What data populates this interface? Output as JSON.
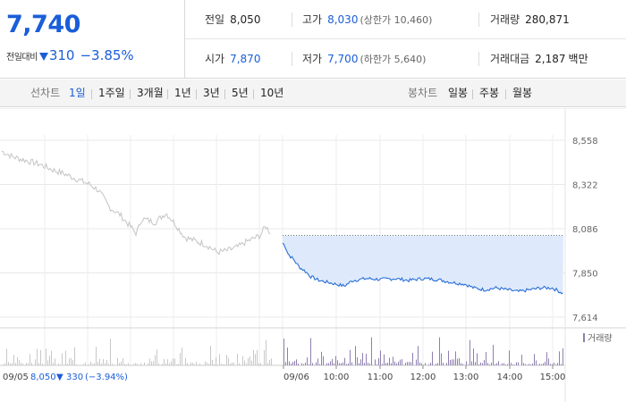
{
  "header": {
    "current_price": "7,740",
    "change_label": "전일대비",
    "change_amount": "310",
    "change_pct": "−3.85%",
    "stats": {
      "prev_close": {
        "label": "전일",
        "value": "8,050"
      },
      "high": {
        "label": "고가",
        "value": "8,030",
        "note": "(상한가 10,460)"
      },
      "volume": {
        "label": "거래량",
        "value": "280,871"
      },
      "open": {
        "label": "시가",
        "value": "7,870"
      },
      "low": {
        "label": "저가",
        "value": "7,700",
        "note": "(하한가 5,640)"
      },
      "trade_value": {
        "label": "거래대금",
        "value": "2,187",
        "unit": "백만"
      }
    }
  },
  "tabs": {
    "line_label": "선차트",
    "line_items": [
      "1일",
      "1주일",
      "3개월",
      "1년",
      "3년",
      "5년",
      "10년"
    ],
    "active": "1일",
    "candle_label": "봉차트",
    "candle_items": [
      "일봉",
      "주봉",
      "월봉"
    ]
  },
  "colors": {
    "accent_blue": "#1a5ed8",
    "today_line": "#2a6fd6",
    "today_fill": "#deeafb",
    "prev_line": "#c4c4c4",
    "volume_prev": "#c8c8c8",
    "volume_today": "#8f7fb0"
  },
  "chart_data": {
    "type": "line",
    "y_ticks": [
      "8,558",
      "8,322",
      "8,086",
      "7,850",
      "7,614"
    ],
    "ylim": [
      7614,
      8558
    ],
    "x_ticks": [
      "09/06",
      "10:00",
      "11:00",
      "12:00",
      "13:00",
      "14:00",
      "15:00"
    ],
    "volume_legend": "거래량",
    "prev_day_footer": {
      "date": "09/05",
      "close": "8,050",
      "change": "330",
      "change_pct": "(−3.94%)"
    },
    "prev_day_series": [
      [
        0,
        8500
      ],
      [
        0.04,
        8470
      ],
      [
        0.09,
        8450
      ],
      [
        0.14,
        8430
      ],
      [
        0.19,
        8400
      ],
      [
        0.23,
        8380
      ],
      [
        0.28,
        8350
      ],
      [
        0.33,
        8320
      ],
      [
        0.36,
        8290
      ],
      [
        0.4,
        8200
      ],
      [
        0.44,
        8160
      ],
      [
        0.5,
        8060
      ],
      [
        0.52,
        8140
      ],
      [
        0.57,
        8120
      ],
      [
        0.61,
        8170
      ],
      [
        0.64,
        8120
      ],
      [
        0.68,
        8040
      ],
      [
        0.72,
        8020
      ],
      [
        0.76,
        8000
      ],
      [
        0.8,
        7960
      ],
      [
        0.84,
        7970
      ],
      [
        0.88,
        7990
      ],
      [
        0.9,
        8010
      ],
      [
        0.93,
        8030
      ],
      [
        0.96,
        8050
      ],
      [
        0.98,
        8100
      ],
      [
        1,
        8060
      ]
    ],
    "today_series": [
      [
        0,
        8010
      ],
      [
        0.01,
        7990
      ],
      [
        0.02,
        7950
      ],
      [
        0.04,
        7920
      ],
      [
        0.06,
        7880
      ],
      [
        0.08,
        7860
      ],
      [
        0.1,
        7830
      ],
      [
        0.13,
        7810
      ],
      [
        0.16,
        7800
      ],
      [
        0.19,
        7790
      ],
      [
        0.22,
        7780
      ],
      [
        0.25,
        7810
      ],
      [
        0.3,
        7820
      ],
      [
        0.35,
        7815
      ],
      [
        0.4,
        7820
      ],
      [
        0.45,
        7810
      ],
      [
        0.5,
        7820
      ],
      [
        0.55,
        7815
      ],
      [
        0.6,
        7800
      ],
      [
        0.65,
        7790
      ],
      [
        0.68,
        7770
      ],
      [
        0.72,
        7760
      ],
      [
        0.76,
        7770
      ],
      [
        0.8,
        7760
      ],
      [
        0.84,
        7750
      ],
      [
        0.88,
        7760
      ],
      [
        0.92,
        7770
      ],
      [
        0.96,
        7770
      ],
      [
        1,
        7740
      ]
    ],
    "base_price": 8050
  }
}
